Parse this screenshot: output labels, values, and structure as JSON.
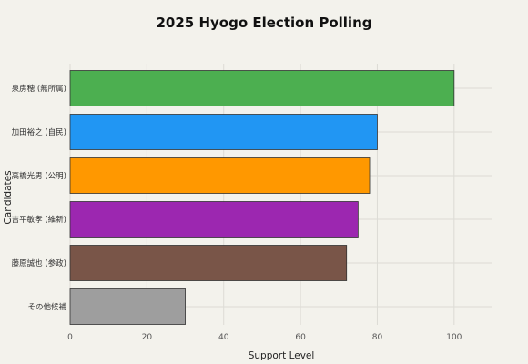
{
  "chart_data": {
    "type": "bar",
    "orientation": "horizontal",
    "title": "2025 Hyogo Election Polling",
    "xlabel": "Support Level",
    "ylabel": "Candidates",
    "categories": [
      "泉房穂 (無所属)",
      "加田裕之 (自民)",
      "高橋光男 (公明)",
      "吉平敏孝 (維新)",
      "藤原誠也 (参政)",
      "その他候補"
    ],
    "values": [
      100,
      80,
      78,
      75,
      72,
      30
    ],
    "colors": [
      "#4caf50",
      "#2196f3",
      "#ff9800",
      "#9c27b0",
      "#795548",
      "#9e9e9e"
    ],
    "xlim": [
      0,
      110
    ],
    "xticks": [
      0,
      20,
      40,
      60,
      80,
      100
    ],
    "grid": true,
    "legend": "none"
  }
}
